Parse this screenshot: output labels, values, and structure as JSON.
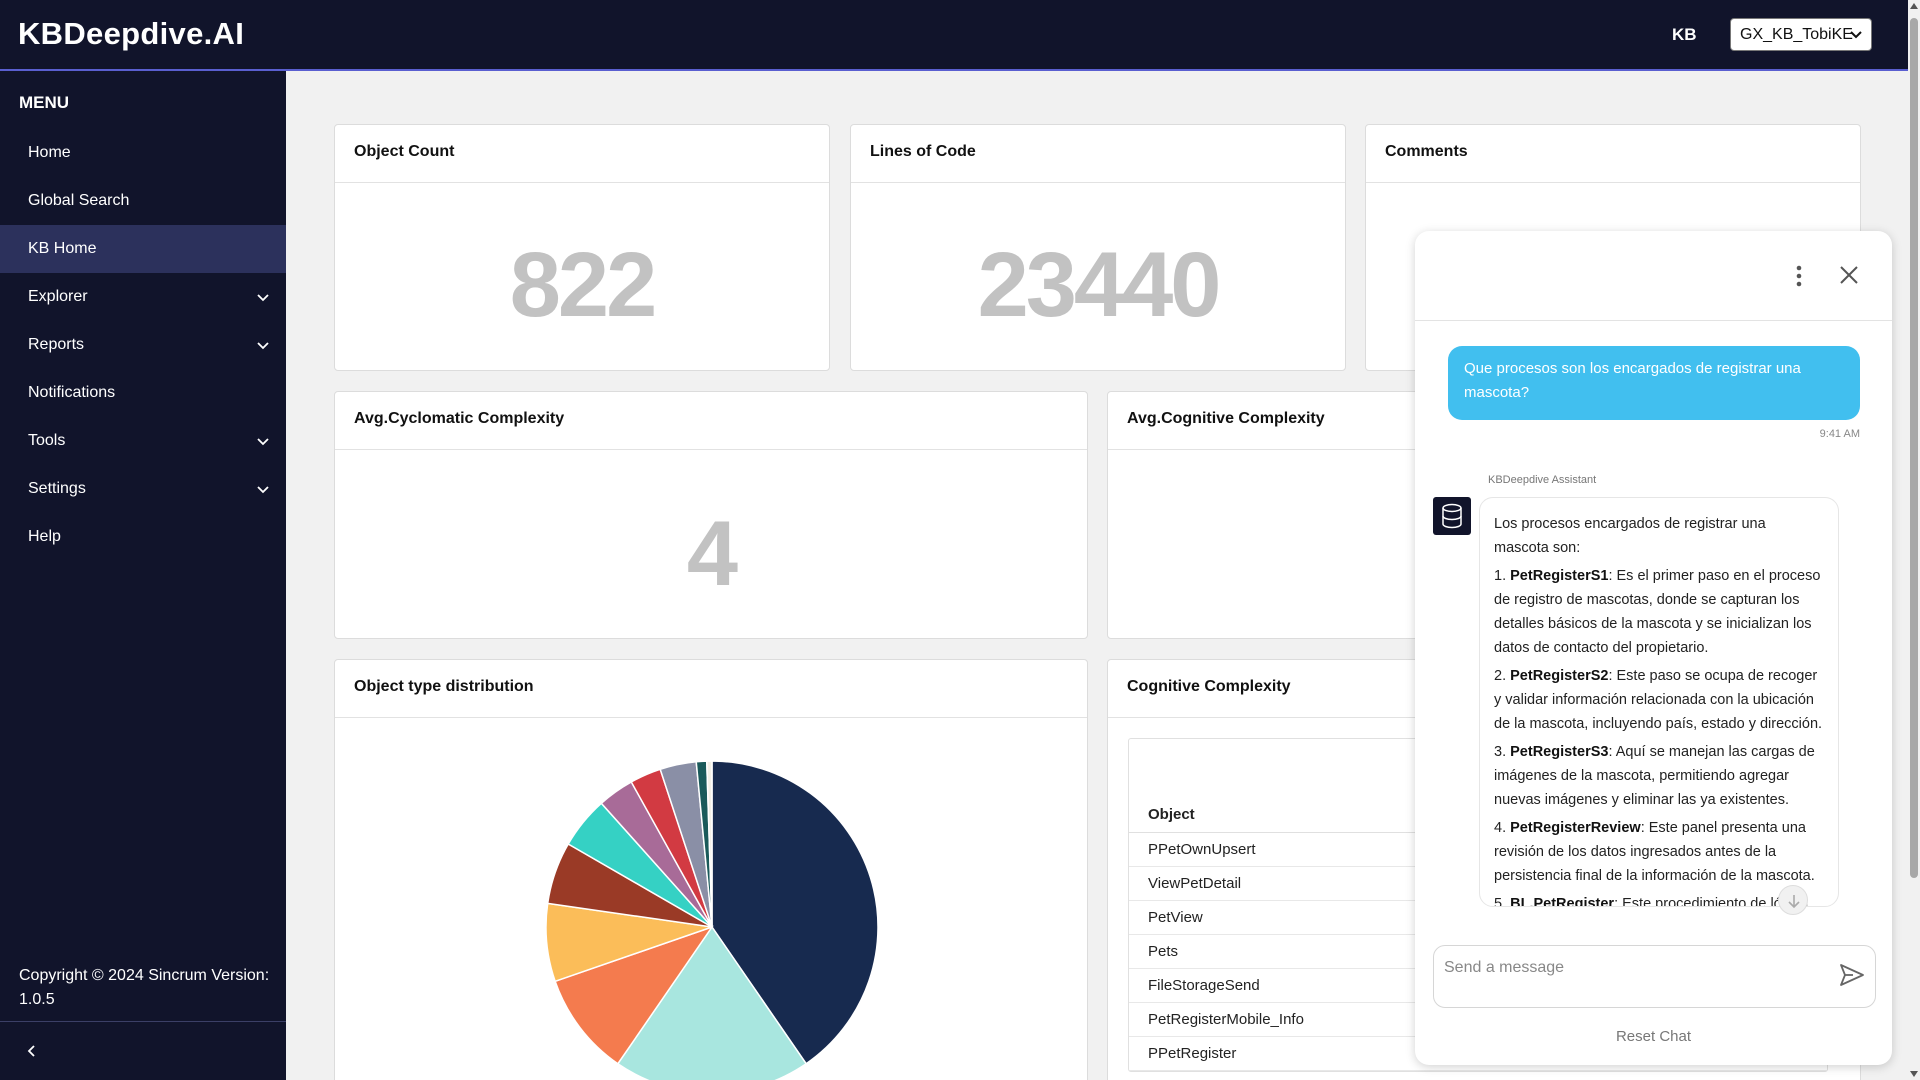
{
  "app": {
    "brand": "KBDeepdive.AI",
    "user_initials": "KB",
    "kb_selected": "GX_KB_TobiKE"
  },
  "sidebar": {
    "menu_title": "MENU",
    "items": [
      {
        "label": "Home",
        "expandable": false,
        "active": false
      },
      {
        "label": "Global Search",
        "expandable": false,
        "active": false
      },
      {
        "label": "KB Home",
        "expandable": false,
        "active": true
      },
      {
        "label": "Explorer",
        "expandable": true,
        "active": false
      },
      {
        "label": "Reports",
        "expandable": true,
        "active": false
      },
      {
        "label": "Notifications",
        "expandable": false,
        "active": false
      },
      {
        "label": "Tools",
        "expandable": true,
        "active": false
      },
      {
        "label": "Settings",
        "expandable": true,
        "active": false
      },
      {
        "label": "Help",
        "expandable": false,
        "active": false
      }
    ],
    "copyright": "Copyright © 2024 Sincrum Version: 1.0.5"
  },
  "cards": {
    "object_count": {
      "title": "Object Count",
      "value": "822"
    },
    "lines_of_code": {
      "title": "Lines of Code",
      "value": "23440"
    },
    "comments": {
      "title": "Comments"
    },
    "avg_cyclomatic": {
      "title": "Avg.Cyclomatic Complexity",
      "value": "4"
    },
    "avg_cognitive": {
      "title": "Avg.Cognitive Complexity"
    },
    "object_type_distribution": {
      "title": "Object type distribution"
    },
    "cognitive_complexity": {
      "title": "Cognitive Complexity",
      "column_header": "Object",
      "rows": [
        "PPetOwnUpsert",
        "ViewPetDetail",
        "PetView",
        "Pets",
        "FileStorageSend",
        "PetRegisterMobile_Info",
        "PPetRegister"
      ]
    }
  },
  "chart_data": {
    "type": "pie",
    "slices": [
      {
        "value": 40.0,
        "color": "#172a4f"
      },
      {
        "value": 19.0,
        "color": "#a8e6df"
      },
      {
        "value": 10.0,
        "color": "#f47b4e"
      },
      {
        "value": 7.5,
        "color": "#fbbd59"
      },
      {
        "value": 6.0,
        "color": "#9a3a26"
      },
      {
        "value": 5.0,
        "color": "#35d1c4"
      },
      {
        "value": 3.5,
        "color": "#a86b98"
      },
      {
        "value": 3.0,
        "color": "#d23a42"
      },
      {
        "value": 3.5,
        "color": "#8a8fa6"
      },
      {
        "value": 1.0,
        "color": "#1a5a5a"
      },
      {
        "value": 0.5,
        "color": "#f2efe6"
      }
    ]
  },
  "chat": {
    "user_message": "Que procesos son los encargados de registrar una mascota?",
    "time": "9:41 AM",
    "assistant_name": "KBDeepdive Assistant",
    "intro": "Los procesos encargados de registrar una mascota son:",
    "steps": [
      {
        "n": "1. ",
        "name": "PetRegisterS1",
        "text": ": Es el primer paso en el proceso de registro de mascotas, donde se capturan los detalles básicos de la mascota y se inicializan los datos de contacto del propietario."
      },
      {
        "n": "2. ",
        "name": "PetRegisterS2",
        "text": ": Este paso se ocupa de recoger y validar información relacionada con la ubicación de la mascota, incluyendo país, estado y dirección."
      },
      {
        "n": "3. ",
        "name": "PetRegisterS3",
        "text": ": Aquí se manejan las cargas de imágenes de la mascota, permitiendo agregar nuevas imágenes y eliminar las ya existentes."
      },
      {
        "n": "4. ",
        "name": "PetRegisterReview",
        "text": ": Este panel presenta una revisión de los datos ingresados antes de la persistencia final de la información de la mascota."
      },
      {
        "n": "5. ",
        "name": "BL.PetRegister",
        "text": ": Este procedimiento de lógica"
      }
    ],
    "input_placeholder": "Send a message",
    "reset_label": "Reset Chat"
  }
}
